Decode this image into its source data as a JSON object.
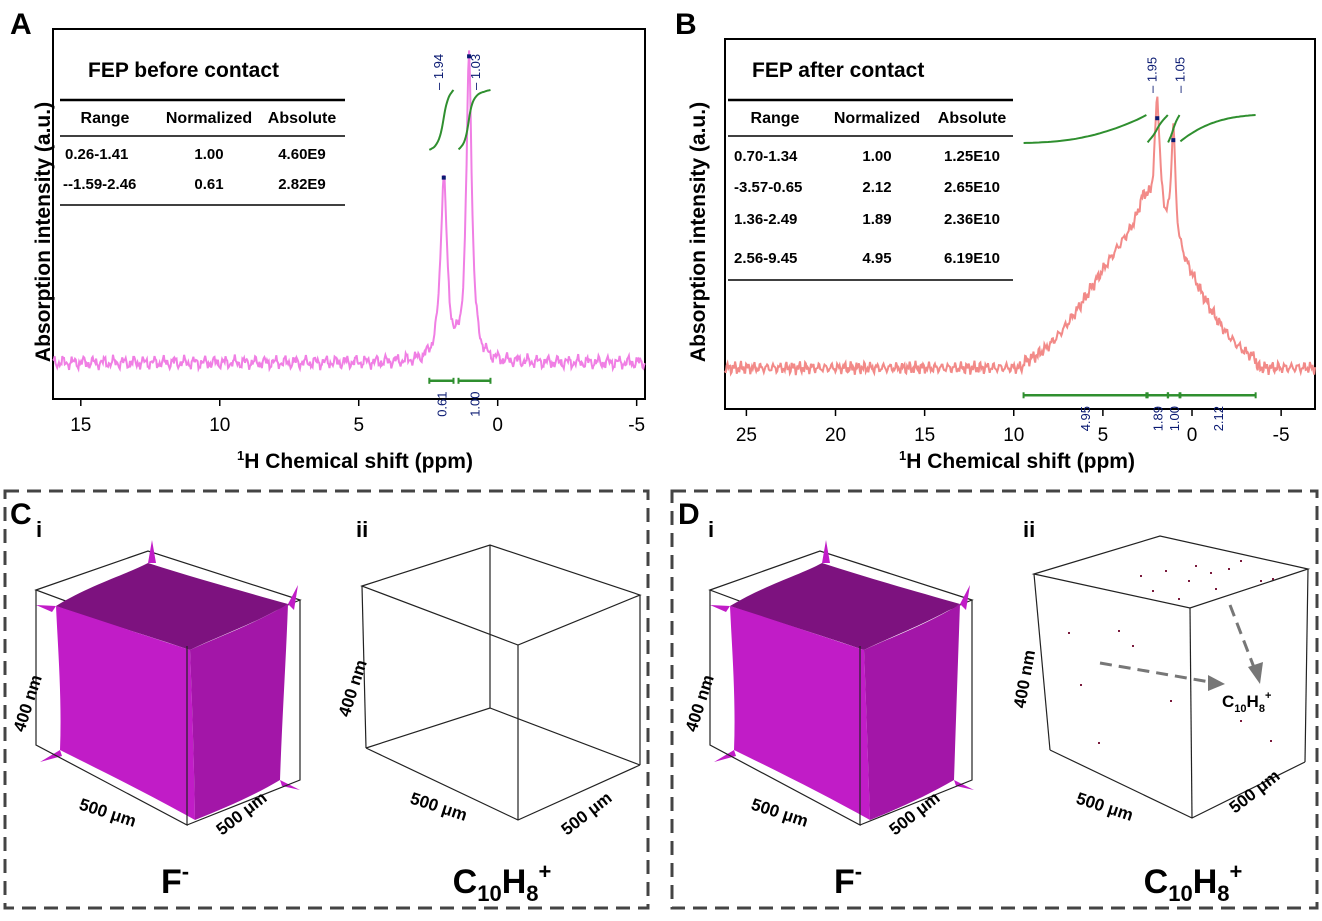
{
  "panels": {
    "A": {
      "letter": "A",
      "table_title": "FEP before contact",
      "headers": [
        "Range",
        "Normalized",
        "Absolute"
      ],
      "rows": [
        [
          "0.26-1.41",
          "1.00",
          "4.60E9"
        ],
        [
          "--1.59-2.46",
          "0.61",
          "2.82E9"
        ]
      ]
    },
    "B": {
      "letter": "B",
      "table_title": "FEP after contact",
      "headers": [
        "Range",
        "Normalized",
        "Absolute"
      ],
      "rows": [
        [
          "0.70-1.34",
          "1.00",
          "1.25E10"
        ],
        [
          "-3.57-0.65",
          "2.12",
          "2.65E10"
        ],
        [
          "1.36-2.49",
          "1.89",
          "2.36E10"
        ],
        [
          "2.56-9.45",
          "4.95",
          "6.19E10"
        ]
      ]
    },
    "C": {
      "letter": "C",
      "sub_i": "i",
      "sub_ii": "ii",
      "dim_z": "400 nm",
      "dim_x": "500 μm",
      "dim_y": "500 μm",
      "ion_i_base": "F",
      "ion_i_sup": "-",
      "ion_ii_base": "C",
      "ion_ii_sub1": "10",
      "ion_ii_mid": "H",
      "ion_ii_sub2": "8",
      "ion_ii_sup": "+"
    },
    "D": {
      "letter": "D",
      "sub_i": "i",
      "sub_ii": "ii",
      "dim_z": "400 nm",
      "dim_x": "500 μm",
      "dim_y": "500 μm",
      "ion_i_base": "F",
      "ion_i_sup": "-",
      "ion_ii_base": "C",
      "ion_ii_sub1": "10",
      "ion_ii_mid": "H",
      "ion_ii_sub2": "8",
      "ion_ii_sup": "+",
      "annotation_base": "C",
      "annotation_sub1": "10",
      "annotation_mid": "H",
      "annotation_sub2": "8",
      "annotation_sup": "+"
    }
  },
  "colors": {
    "spectrum_A": "#f07fe4",
    "spectrum_B": "#f28a88",
    "integral": "#2f8f2f",
    "peak_label": "#0a1a72",
    "cube_face": "#c11cc7",
    "cube_top": "#7d127f",
    "dashed_border": "#444444"
  },
  "chart_data": [
    {
      "type": "line",
      "panel": "A",
      "xlabel_sup": "1",
      "xlabel": "H Chemical shift (ppm)",
      "ylabel": "Absorption intensity (a.u.)",
      "xlim": [
        16,
        -5.3
      ],
      "ylim": [
        -0.12,
        1.1
      ],
      "xticks": [
        15,
        10,
        5,
        0,
        -5
      ],
      "xtick_labels": [
        "15",
        "10",
        "5",
        "0",
        "-5"
      ],
      "peaks": [
        {
          "position": 1.94,
          "label": "1.94",
          "height": 0.6
        },
        {
          "position": 1.03,
          "label": "1.03",
          "height": 1.0
        }
      ],
      "integrals": [
        {
          "from": 2.46,
          "to": 1.59,
          "value": "0.61"
        },
        {
          "from": 1.41,
          "to": 0.26,
          "value": "1.00"
        }
      ]
    },
    {
      "type": "line",
      "panel": "B",
      "xlabel_sup": "1",
      "xlabel": "H Chemical shift (ppm)",
      "ylabel": "Absorption intensity (a.u.)",
      "xlim": [
        26.2,
        -6.9
      ],
      "ylim": [
        -0.15,
        1.2
      ],
      "xticks": [
        25,
        20,
        15,
        10,
        5,
        0,
        -5
      ],
      "xtick_labels": [
        "25",
        "20",
        "15",
        "10",
        "5",
        "0",
        "-5"
      ],
      "peaks": [
        {
          "position": 1.95,
          "label": "1.95",
          "height": 0.9
        },
        {
          "position": 1.05,
          "label": "1.05",
          "height": 0.82
        }
      ],
      "integrals": [
        {
          "from": 9.45,
          "to": 2.56,
          "value": "4.95"
        },
        {
          "from": 2.49,
          "to": 1.36,
          "value": "1.89"
        },
        {
          "from": 1.34,
          "to": 0.7,
          "value": "1.00"
        },
        {
          "from": 0.65,
          "to": -3.57,
          "value": "2.12"
        }
      ]
    }
  ]
}
